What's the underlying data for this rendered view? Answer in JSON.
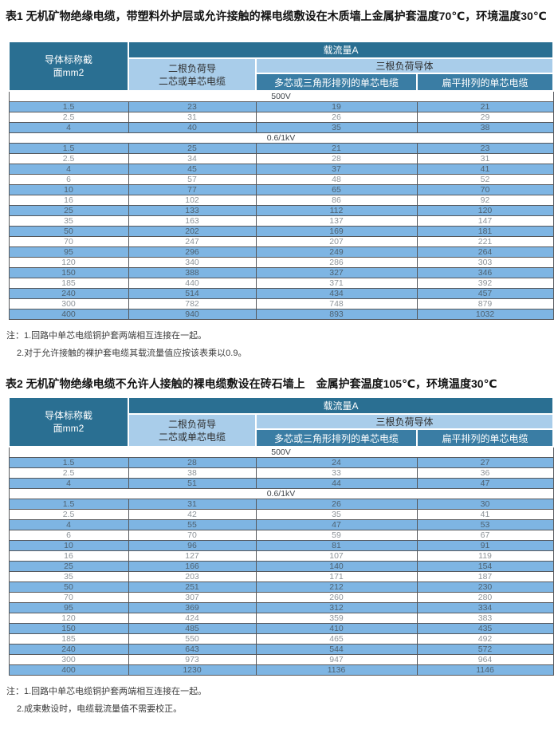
{
  "columns": {
    "conductor_line1": "导体标称截",
    "conductor_line2": "面mm2",
    "ampacity": "载流量A",
    "two_loaded_line1": "二根负荷导",
    "two_loaded_line2": "二芯或单芯电缆",
    "three_loaded": "三根负荷导体",
    "multicore": "多芯或三角形排列的单芯电缆",
    "flat": "扁平排列的单芯电缆"
  },
  "colors": {
    "header_dark": "#2a6f92",
    "header_light": "#a9cdea",
    "header_mid": "#3a7da4",
    "row_blue": "#7eb5e3"
  },
  "tables": [
    {
      "title": "表1 无机矿物绝缘电缆，带塑料外护层或允许接触的裸电缆敷设在木质墙上金属护套温度70℃，环境温度30℃",
      "sections": [
        {
          "label": "500V",
          "rows": [
            [
              "1.5",
              "23",
              "19",
              "21"
            ],
            [
              "2.5",
              "31",
              "26",
              "29"
            ],
            [
              "4",
              "40",
              "35",
              "38"
            ]
          ]
        },
        {
          "label": "0.6/1kV",
          "rows": [
            [
              "1.5",
              "25",
              "21",
              "23"
            ],
            [
              "2.5",
              "34",
              "28",
              "31"
            ],
            [
              "4",
              "45",
              "37",
              "41"
            ],
            [
              "6",
              "57",
              "48",
              "52"
            ],
            [
              "10",
              "77",
              "65",
              "70"
            ],
            [
              "16",
              "102",
              "86",
              "92"
            ],
            [
              "25",
              "133",
              "112",
              "120"
            ],
            [
              "35",
              "163",
              "137",
              "147"
            ],
            [
              "50",
              "202",
              "169",
              "181"
            ],
            [
              "70",
              "247",
              "207",
              "221"
            ],
            [
              "95",
              "296",
              "249",
              "264"
            ],
            [
              "120",
              "340",
              "286",
              "303"
            ],
            [
              "150",
              "388",
              "327",
              "346"
            ],
            [
              "185",
              "440",
              "371",
              "392"
            ],
            [
              "240",
              "514",
              "434",
              "457"
            ],
            [
              "300",
              "782",
              "748",
              "879"
            ],
            [
              "400",
              "940",
              "893",
              "1032"
            ]
          ]
        }
      ],
      "notes": [
        "注：1.回路中单芯电缆铜护套两端相互连接在一起。",
        "2.对于允许接触的裸护套电缆其载流量值应按该表乘以0.9。"
      ]
    },
    {
      "title": "表2 无机矿物绝缘电缆不允许人接触的裸电缆敷设在砖石墙上　金属护套温度105℃，环境温度30℃",
      "sections": [
        {
          "label": "500V",
          "rows": [
            [
              "1.5",
              "28",
              "24",
              "27"
            ],
            [
              "2.5",
              "38",
              "33",
              "36"
            ],
            [
              "4",
              "51",
              "44",
              "47"
            ]
          ]
        },
        {
          "label": "0.6/1kV",
          "rows": [
            [
              "1.5",
              "31",
              "26",
              "30"
            ],
            [
              "2.5",
              "42",
              "35",
              "41"
            ],
            [
              "4",
              "55",
              "47",
              "53"
            ],
            [
              "6",
              "70",
              "59",
              "67"
            ],
            [
              "10",
              "96",
              "81",
              "91"
            ],
            [
              "16",
              "127",
              "107",
              "119"
            ],
            [
              "25",
              "166",
              "140",
              "154"
            ],
            [
              "35",
              "203",
              "171",
              "187"
            ],
            [
              "50",
              "251",
              "212",
              "230"
            ],
            [
              "70",
              "307",
              "260",
              "280"
            ],
            [
              "95",
              "369",
              "312",
              "334"
            ],
            [
              "120",
              "424",
              "359",
              "383"
            ],
            [
              "150",
              "485",
              "410",
              "435"
            ],
            [
              "185",
              "550",
              "465",
              "492"
            ],
            [
              "240",
              "643",
              "544",
              "572"
            ],
            [
              "300",
              "973",
              "947",
              "964"
            ],
            [
              "400",
              "1230",
              "1136",
              "1146"
            ]
          ]
        }
      ],
      "notes": [
        "注：1.回路中单芯电缆铜护套两端相互连接在一起。",
        "2.成束敷设时，电缆载流量值不需要校正。"
      ]
    }
  ]
}
